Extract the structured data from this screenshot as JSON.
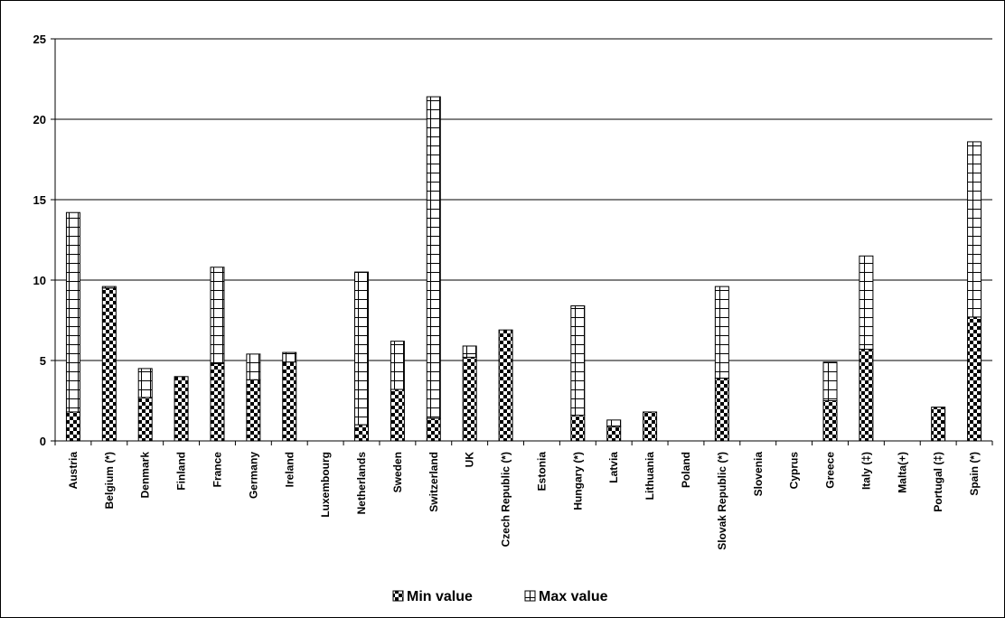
{
  "chart_data": {
    "type": "bar",
    "stacked": true,
    "categories": [
      "Austria",
      "Belgium (*)",
      "Denmark",
      "Finland",
      "France",
      "Germany",
      "Ireland",
      "Luxembourg",
      "Netherlands",
      "Sweden",
      "Switzerland",
      "UK",
      "Czech Republic (*)",
      "Estonia",
      "Hungary (*)",
      "Latvia",
      "Lithuania",
      "Poland",
      "Slovak Republic (*)",
      "Slovenia",
      "Cyprus",
      "Greece",
      "Italy (‡)",
      "Malta(+)",
      "Portugal (‡)",
      "Spain (*)"
    ],
    "series": [
      {
        "name": "Min value",
        "values": [
          1.8,
          9.5,
          2.7,
          4.0,
          4.8,
          3.8,
          4.9,
          0,
          1.0,
          3.2,
          1.4,
          5.2,
          6.9,
          0,
          1.6,
          0.9,
          1.8,
          0,
          3.9,
          0,
          0,
          2.5,
          5.7,
          0,
          2.1,
          7.7
        ]
      },
      {
        "name": "Max value",
        "values": [
          14.2,
          9.6,
          4.5,
          4.0,
          10.8,
          5.4,
          5.5,
          0,
          10.5,
          6.2,
          21.4,
          5.9,
          6.9,
          0,
          8.4,
          1.3,
          1.8,
          0,
          9.6,
          0,
          0,
          4.9,
          11.5,
          0,
          2.1,
          18.6
        ]
      }
    ],
    "ylim": [
      0,
      25
    ],
    "yticks": [
      0,
      5,
      10,
      15,
      20,
      25
    ],
    "grid": true,
    "legend": "bottom-center",
    "colors": {
      "bar_border": "#000000",
      "grid": "#000000"
    }
  }
}
